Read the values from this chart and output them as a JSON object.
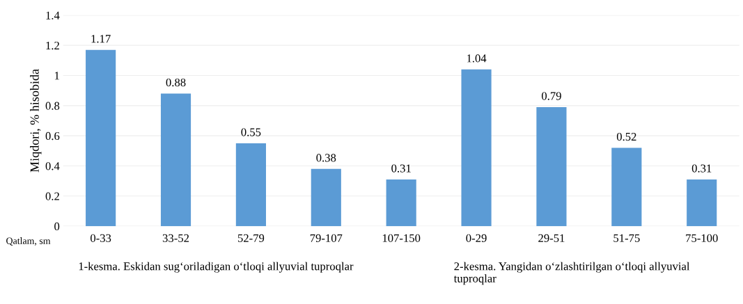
{
  "chart_data": {
    "type": "bar",
    "ylabel": "Miqdori, % hisobida",
    "categories": [
      "0-33",
      "33-52",
      "52-79",
      "79-107",
      "107-150",
      "0-29",
      "29-51",
      "51-75",
      "75-100"
    ],
    "values": [
      1.17,
      0.88,
      0.55,
      0.38,
      0.31,
      1.04,
      0.79,
      0.52,
      0.31
    ],
    "color": "#5b9bd5",
    "ylim": [
      0,
      1.4
    ],
    "yticks": [
      0,
      0.2,
      0.4,
      0.6,
      0.8,
      1,
      1.2,
      1.4
    ],
    "grid": "y",
    "data_labels": true,
    "annotations": [
      "Qatlam, sm",
      "1-kesma. Eskidan sug‘oriladigan o‘tloqi allyuvial tuproqlar",
      "2-kesma. Yangidan o‘zlashtirilgan o‘tloqi allyuvial tuproqlar"
    ]
  }
}
